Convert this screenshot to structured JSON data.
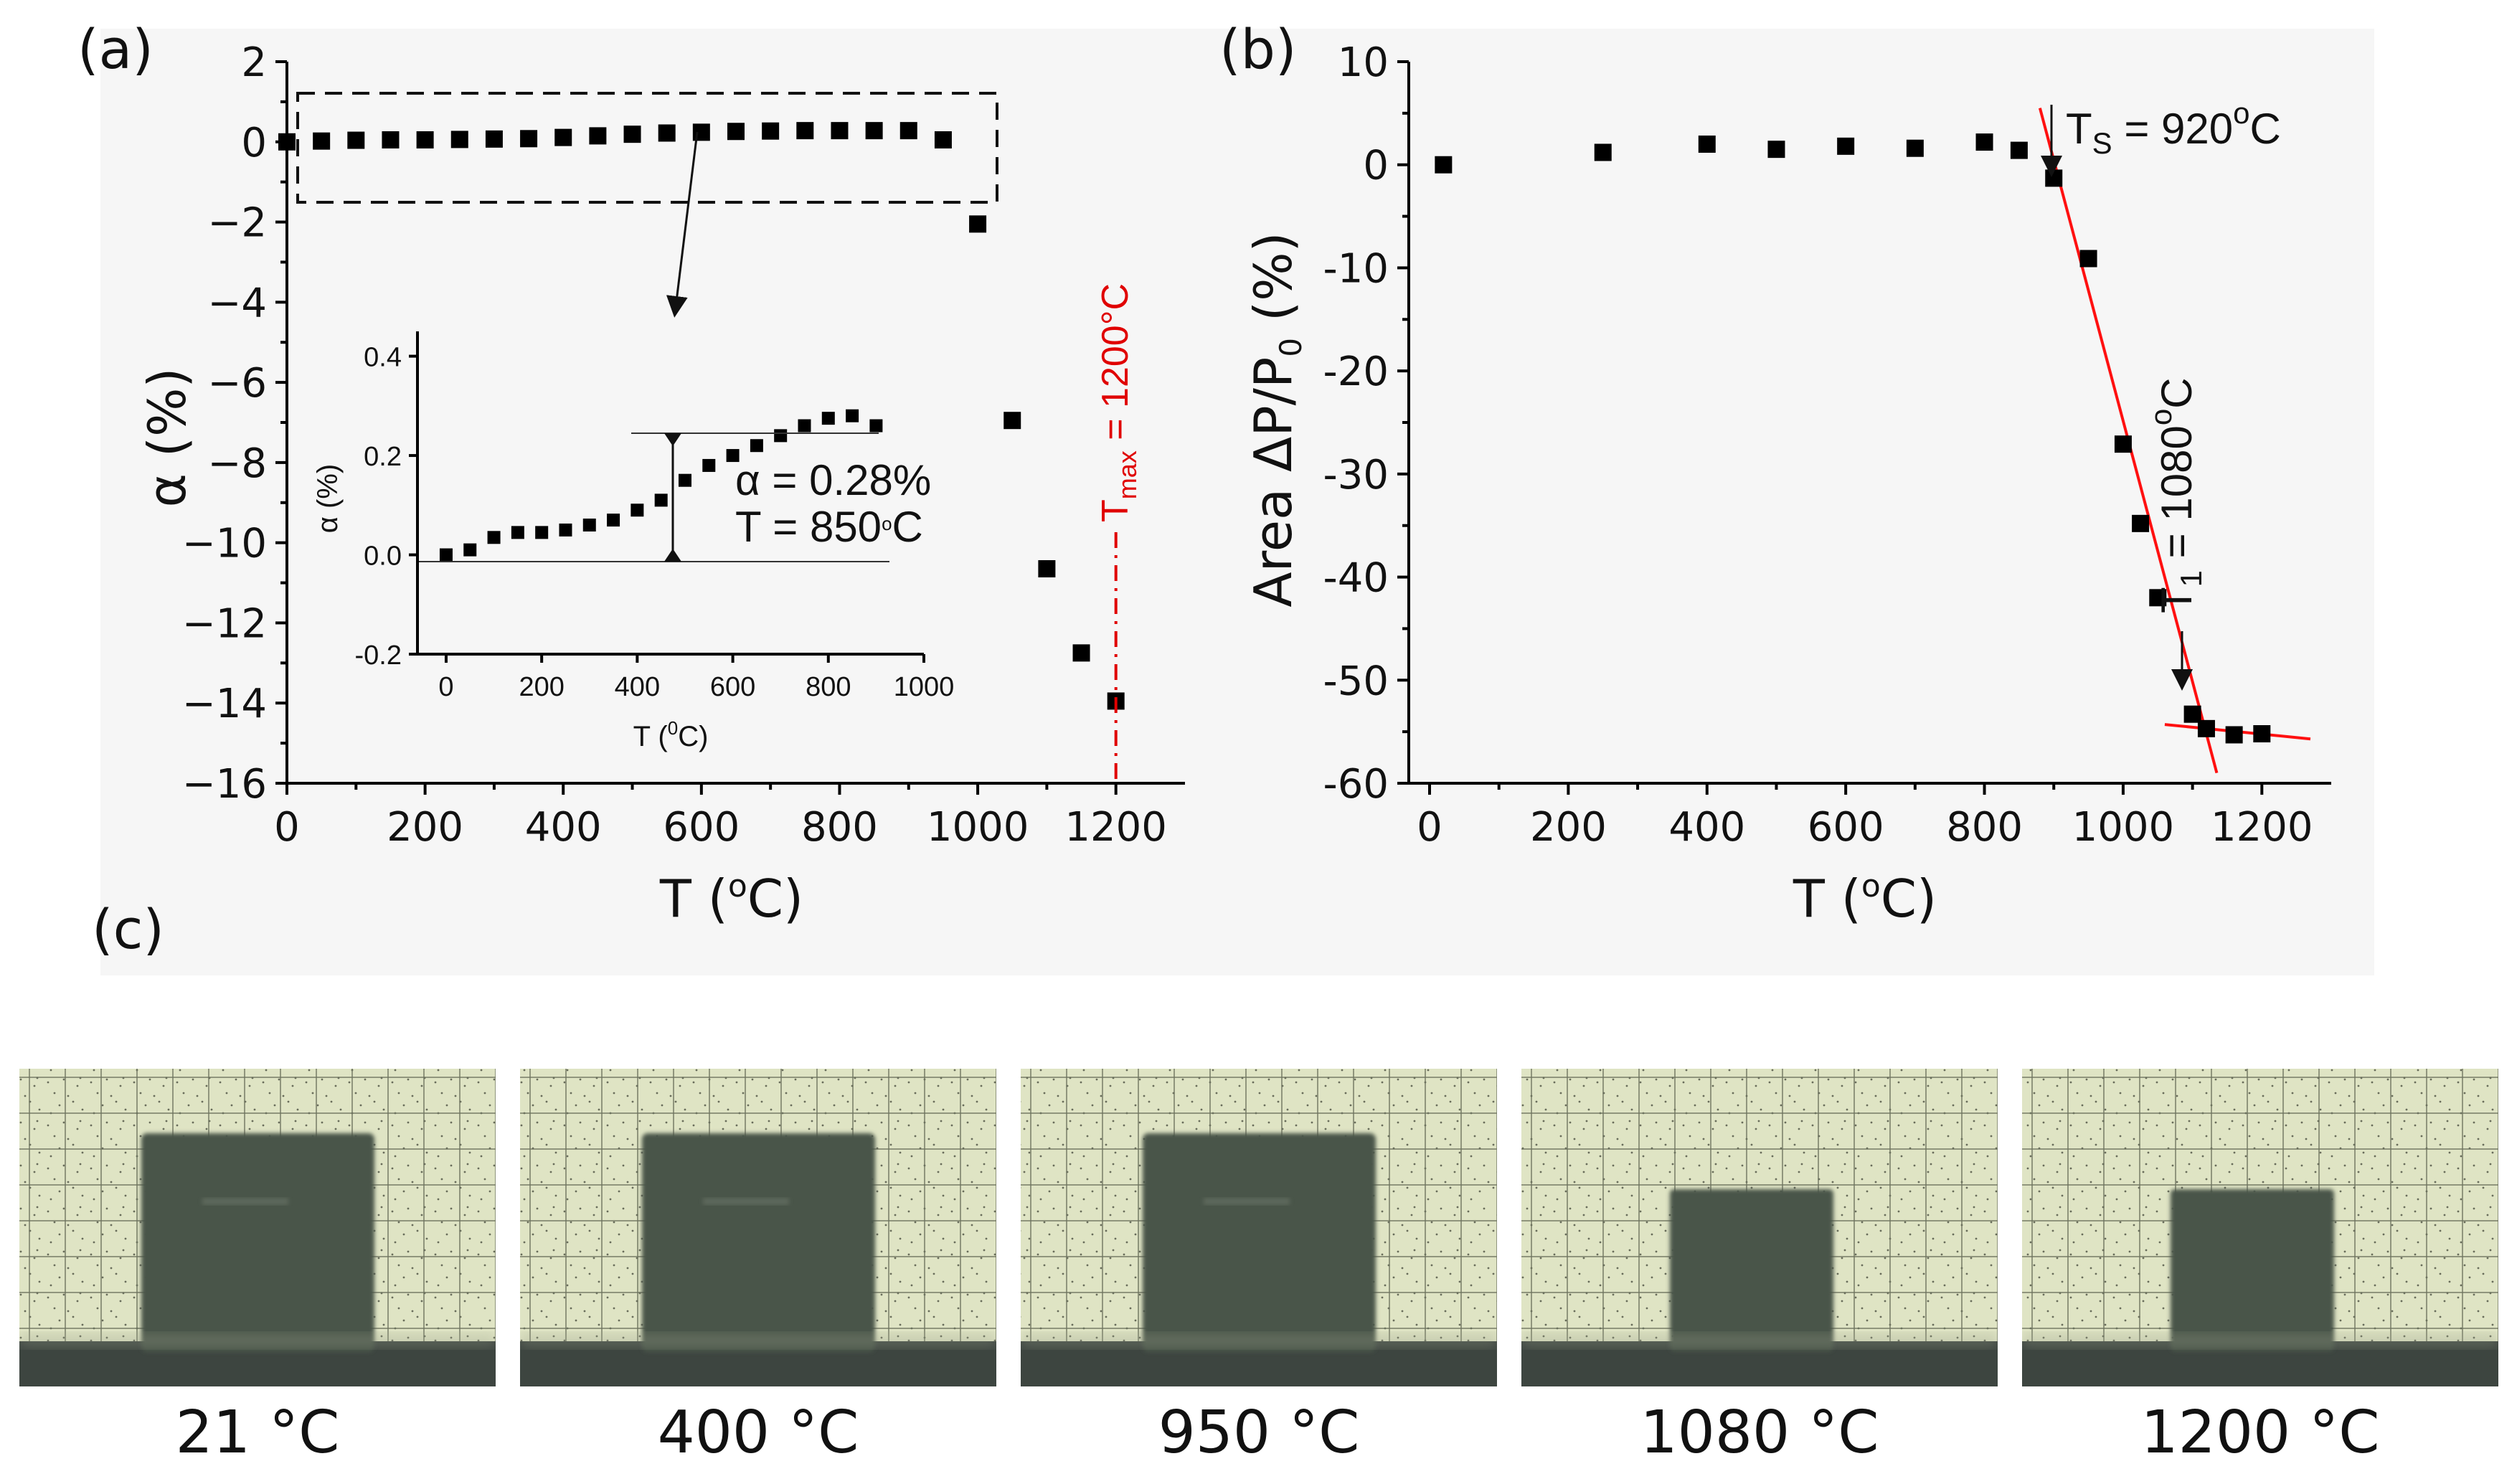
{
  "figure": {
    "panel_a_letter": "(a)",
    "panel_b_letter": "(b)",
    "panel_c_letter": "(c)"
  },
  "chart_data": [
    {
      "id": "a",
      "type": "scatter",
      "xlabel": "T (",
      "xlabel_sup": "o",
      "xlabel_end": "C)",
      "ylabel": "α (%)",
      "xlim": [
        0,
        1300
      ],
      "ylim": [
        -16,
        2
      ],
      "xticks": [
        0,
        200,
        400,
        600,
        800,
        1000,
        1200
      ],
      "yticks": [
        2,
        0,
        -2,
        -4,
        -6,
        -8,
        -10,
        -12,
        -14,
        -16
      ],
      "ytick_labels": [
        "2",
        "0",
        "−2",
        "−4",
        "−6",
        "−8",
        "−10",
        "−12",
        "−14",
        "−16"
      ],
      "series": [
        {
          "name": "α",
          "x": [
            0,
            50,
            100,
            150,
            200,
            250,
            300,
            350,
            400,
            450,
            500,
            550,
            600,
            650,
            700,
            750,
            800,
            850,
            900,
            950,
            1000,
            1050,
            1100,
            1150,
            1200
          ],
          "y": [
            0.0,
            0.02,
            0.04,
            0.05,
            0.05,
            0.06,
            0.07,
            0.08,
            0.11,
            0.15,
            0.19,
            0.22,
            0.24,
            0.26,
            0.27,
            0.28,
            0.28,
            0.28,
            0.28,
            0.05,
            -2.05,
            -6.95,
            -10.65,
            -12.75,
            -13.95
          ]
        }
      ],
      "tmax_line": {
        "x": 1200,
        "label_main": "T",
        "label_sub": "max",
        "label_rest": " = 1200°C"
      },
      "inset": {
        "xlabel": "T (",
        "xlabel_sup": "0",
        "xlabel_end": "C)",
        "ylabel": "α (%)",
        "xlim": [
          -60,
          1000
        ],
        "ylim": [
          -0.2,
          0.45
        ],
        "xticks": [
          0,
          200,
          400,
          600,
          800,
          1000
        ],
        "yticks": [
          0.4,
          0.2,
          0.0,
          -0.2
        ],
        "ytick_labels": [
          "0.4",
          "0.2",
          "0.0",
          "-0.2"
        ],
        "x": [
          0,
          50,
          100,
          150,
          200,
          250,
          300,
          350,
          400,
          450,
          500,
          550,
          600,
          650,
          700,
          750,
          800,
          850,
          900
        ],
        "y": [
          0.0,
          0.01,
          0.035,
          0.045,
          0.045,
          0.05,
          0.06,
          0.07,
          0.09,
          0.11,
          0.15,
          0.18,
          0.2,
          0.22,
          0.24,
          0.26,
          0.275,
          0.28,
          0.26
        ],
        "annot_alpha": "α = 0.28%",
        "annot_t": "T = 850",
        "annot_t_sup": "o",
        "annot_t_end": "C"
      }
    },
    {
      "id": "b",
      "type": "scatter",
      "xlabel": "T (",
      "xlabel_sup": "o",
      "xlabel_end": "C)",
      "ylabel": "Area ΔP/P",
      "ylabel_sub": "0",
      "ylabel_end": " (%)",
      "xlim": [
        -30,
        1300
      ],
      "ylim": [
        -60,
        10
      ],
      "xticks": [
        0,
        200,
        400,
        600,
        800,
        1000,
        1200
      ],
      "yticks": [
        10,
        0,
        -10,
        -20,
        -30,
        -40,
        -50,
        -60
      ],
      "series": [
        {
          "name": "Area ΔP/P0",
          "x": [
            20,
            250,
            400,
            500,
            600,
            700,
            800,
            850,
            900,
            950,
            1000,
            1025,
            1050,
            1100,
            1120,
            1160,
            1200
          ],
          "y": [
            0,
            1.2,
            2.0,
            1.5,
            1.8,
            1.6,
            2.2,
            1.4,
            -1.3,
            -9.1,
            -27.1,
            -34.8,
            -42.0,
            -53.3,
            -54.7,
            -55.3,
            -55.2
          ]
        }
      ],
      "fit_lines": [
        {
          "x": [
            880,
            1135
          ],
          "y": [
            5.5,
            -59
          ]
        },
        {
          "x": [
            1060,
            1270
          ],
          "y": [
            -54.3,
            -55.7
          ]
        }
      ],
      "ts_label": "T",
      "ts_sub": "S",
      "ts_rest": " = 920",
      "ts_sup": "o",
      "ts_end": "C",
      "t1_label": "T",
      "t1_sub": "1",
      "t1_rest": " = 1080",
      "t1_sup": "o",
      "t1_end": "C"
    }
  ],
  "photos": [
    {
      "caption": "21 °C",
      "state": "full"
    },
    {
      "caption": "400 °C",
      "state": "full"
    },
    {
      "caption": "950 °C",
      "state": "full"
    },
    {
      "caption": "1080 °C",
      "state": "shrunk"
    },
    {
      "caption": "1200 °C",
      "state": "shrunk"
    }
  ],
  "colors": {
    "fit_line": "#ff1010",
    "tmax_line": "#e00000",
    "grid_paper": "#dfe4c4",
    "sample": "#4a5549",
    "base": "#3d4540"
  }
}
